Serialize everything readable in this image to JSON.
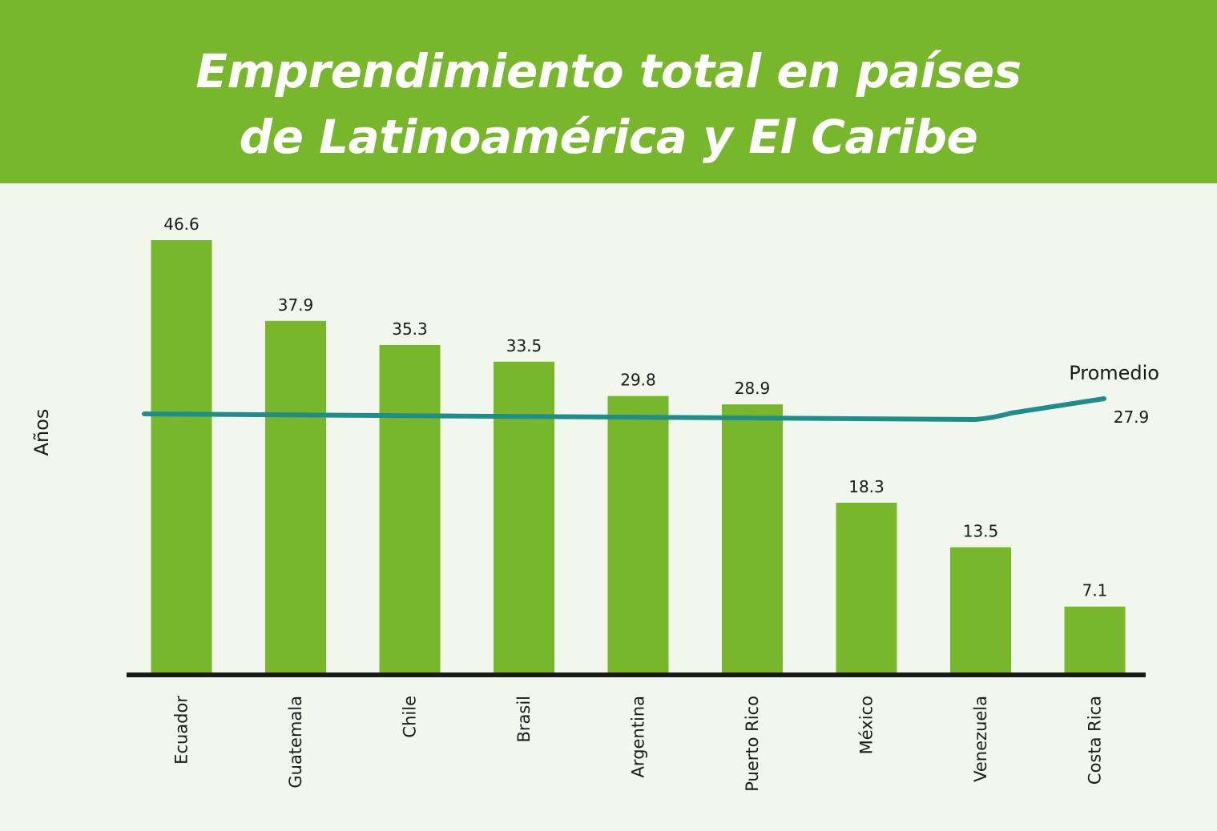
{
  "chart_data": {
    "type": "bar",
    "title": "Emprendimiento total en países\nde Latinoamérica y El Caribe",
    "ylabel": "Años",
    "xlabel": "",
    "categories": [
      "Ecuador",
      "Guatemala",
      "Chile",
      "Brasil",
      "Argentina",
      "Puerto Rico",
      "México",
      "Venezuela",
      "Costa Rica"
    ],
    "values": [
      46.6,
      37.9,
      35.3,
      33.5,
      29.8,
      28.9,
      18.3,
      13.5,
      7.1
    ],
    "value_labels": [
      "46.6",
      "37.9",
      "35.3",
      "33.5",
      "29.8",
      "28.9",
      "18.3",
      "13.5",
      "7.1"
    ],
    "ylim": [
      0,
      50
    ],
    "grid": false,
    "average_line": {
      "name": "Promedio",
      "value": 27.9,
      "value_label": "27.9",
      "color": "#1e8f88"
    },
    "colors": {
      "header": "#78b62c",
      "bar": "#78b62c",
      "background": "#f2f7ee",
      "axis": "#1a1a1a",
      "line": "#1e8f88"
    }
  }
}
